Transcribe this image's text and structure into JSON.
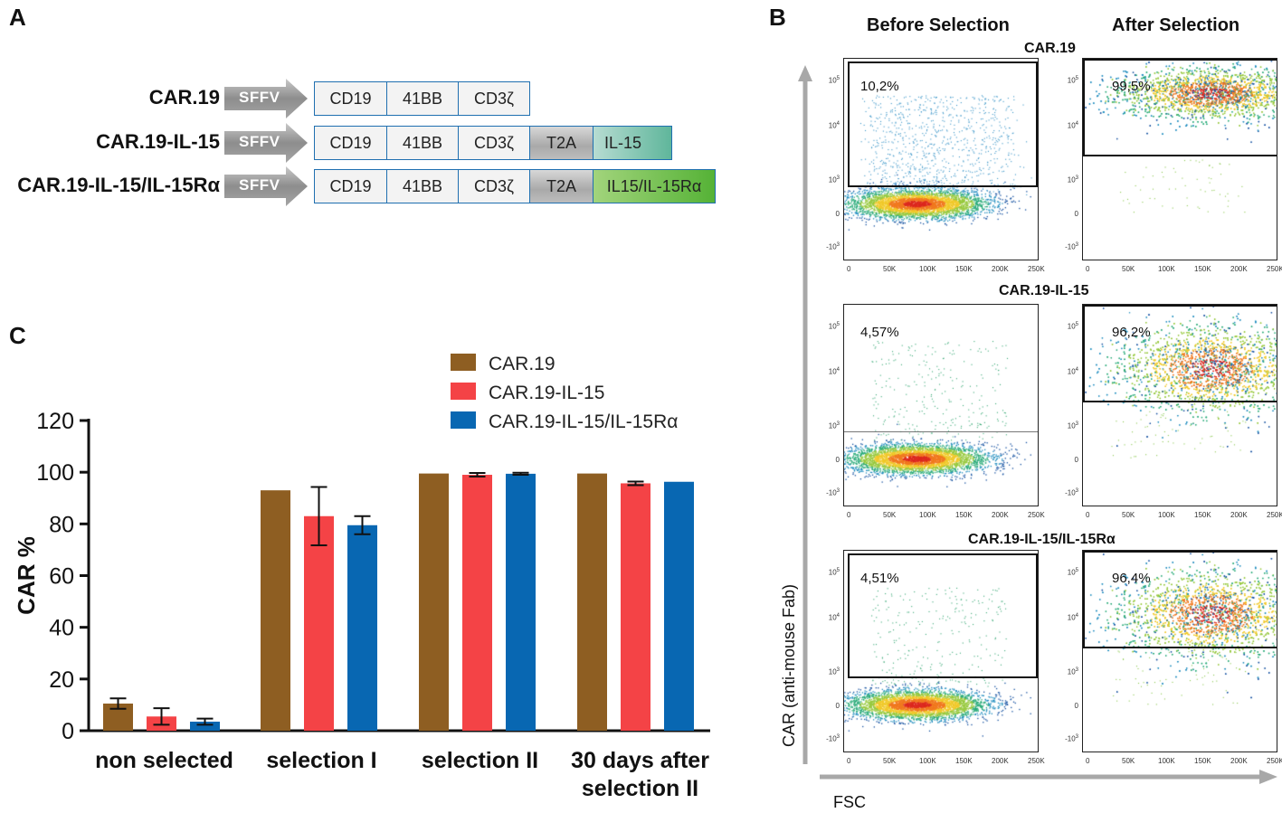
{
  "panel_labels": {
    "a": "A",
    "b": "B",
    "c": "C"
  },
  "panel_a": {
    "promoter": "SFFV",
    "constructs": [
      {
        "name": "CAR.19",
        "segments": [
          {
            "label": "CD19",
            "style": "white"
          },
          {
            "label": "41BB",
            "style": "white"
          },
          {
            "label": "CD3ζ",
            "style": "white"
          }
        ]
      },
      {
        "name": "CAR.19-IL-15",
        "segments": [
          {
            "label": "CD19",
            "style": "white"
          },
          {
            "label": "41BB",
            "style": "white"
          },
          {
            "label": "CD3ζ",
            "style": "white"
          },
          {
            "label": "T2A",
            "style": "grey"
          },
          {
            "label": "IL-15",
            "style": "teal"
          }
        ]
      },
      {
        "name": "CAR.19-IL-15/IL-15Rα",
        "segments": [
          {
            "label": "CD19",
            "style": "white"
          },
          {
            "label": "41BB",
            "style": "white"
          },
          {
            "label": "CD3ζ",
            "style": "white"
          },
          {
            "label": "T2A",
            "style": "grey"
          },
          {
            "label": "IL15/IL-15Rα",
            "style": "green"
          }
        ]
      }
    ]
  },
  "panel_b": {
    "col_before": "Before Selection",
    "col_after": "After Selection",
    "ylabel": "CAR (anti-mouse Fab)",
    "xlabel": "FSC",
    "x_ticks": [
      "0",
      "50K",
      "100K",
      "150K",
      "200K",
      "250K"
    ],
    "y_ticks": [
      {
        "base": "10",
        "exp": "5"
      },
      {
        "base": "10",
        "exp": "4"
      },
      {
        "base": "10",
        "exp": "3"
      },
      {
        "base": "0",
        "exp": ""
      },
      {
        "base": "-10",
        "exp": "3"
      }
    ],
    "rows": [
      {
        "title": "CAR.19",
        "before_pct": "10,2%",
        "after_pct": "99,5%"
      },
      {
        "title": "CAR.19-IL-15",
        "before_pct": "4,57%",
        "after_pct": "96,2%"
      },
      {
        "title": "CAR.19-IL-15/IL-15Rα",
        "before_pct": "4,51%",
        "after_pct": "96,4%"
      }
    ]
  },
  "chart_data": {
    "type": "bar",
    "title": "",
    "xlabel": "",
    "ylabel": "CAR %",
    "ylim": [
      0,
      120
    ],
    "y_ticks": [
      0,
      20,
      40,
      60,
      80,
      100,
      120
    ],
    "categories": [
      "non selected",
      "selection I",
      "selection II",
      "30 days after selection II"
    ],
    "series": [
      {
        "name": "CAR.19",
        "color": "#8e5e22",
        "values": [
          10.5,
          93,
          99.5,
          99.5
        ],
        "errors": [
          2,
          0,
          0,
          0
        ]
      },
      {
        "name": "CAR.19-IL-15",
        "color": "#f44346",
        "values": [
          5.5,
          83,
          99,
          95.7
        ],
        "errors": [
          3.2,
          11.3,
          0.7,
          0.7
        ]
      },
      {
        "name": "CAR.19-IL-15/IL-15Rα",
        "color": "#0867b2",
        "values": [
          3.5,
          79.5,
          99.4,
          96.3
        ],
        "errors": [
          1.2,
          3.5,
          0.4,
          0
        ]
      }
    ],
    "legend_position": "top-right"
  }
}
